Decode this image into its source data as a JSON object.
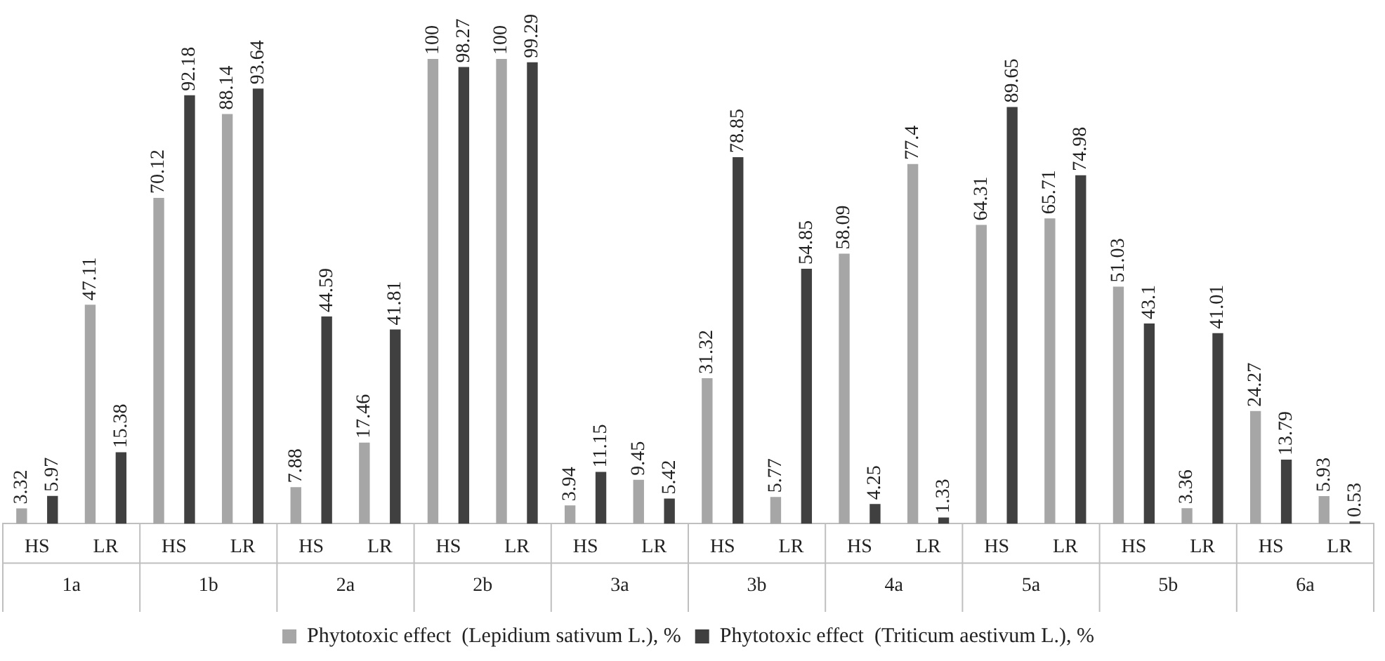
{
  "chart_data": {
    "type": "bar",
    "categories": [
      "HS",
      "LR",
      "HS",
      "LR",
      "HS",
      "LR",
      "HS",
      "LR",
      "HS",
      "LR",
      "HS",
      "LR",
      "HS",
      "LR",
      "HS",
      "LR",
      "HS",
      "LR",
      "HS",
      "LR"
    ],
    "annotations": [
      "1a",
      "1b",
      "2a",
      "2b",
      "3a",
      "3b",
      "4a",
      "5a",
      "5b",
      "6a"
    ],
    "series": [
      {
        "name": "Phytotoxic effect  (Lepidium sativum L.), %",
        "color": "#a6a6a6",
        "values": [
          3.32,
          47.11,
          70.12,
          88.14,
          7.88,
          17.46,
          100,
          100,
          3.94,
          9.45,
          31.32,
          5.77,
          58.09,
          77.4,
          64.31,
          65.71,
          51.03,
          3.36,
          24.27,
          5.93
        ]
      },
      {
        "name": "Phytotoxic effect  (Triticum aestivum L.), %",
        "color": "#404040",
        "values": [
          5.97,
          15.38,
          92.18,
          93.64,
          44.59,
          41.81,
          98.27,
          99.29,
          11.15,
          5.42,
          78.85,
          54.85,
          4.25,
          1.33,
          89.65,
          74.98,
          43.1,
          41.01,
          13.79,
          0.53
        ]
      }
    ],
    "data_labels": true,
    "legend": "bottom",
    "grid": false
  }
}
